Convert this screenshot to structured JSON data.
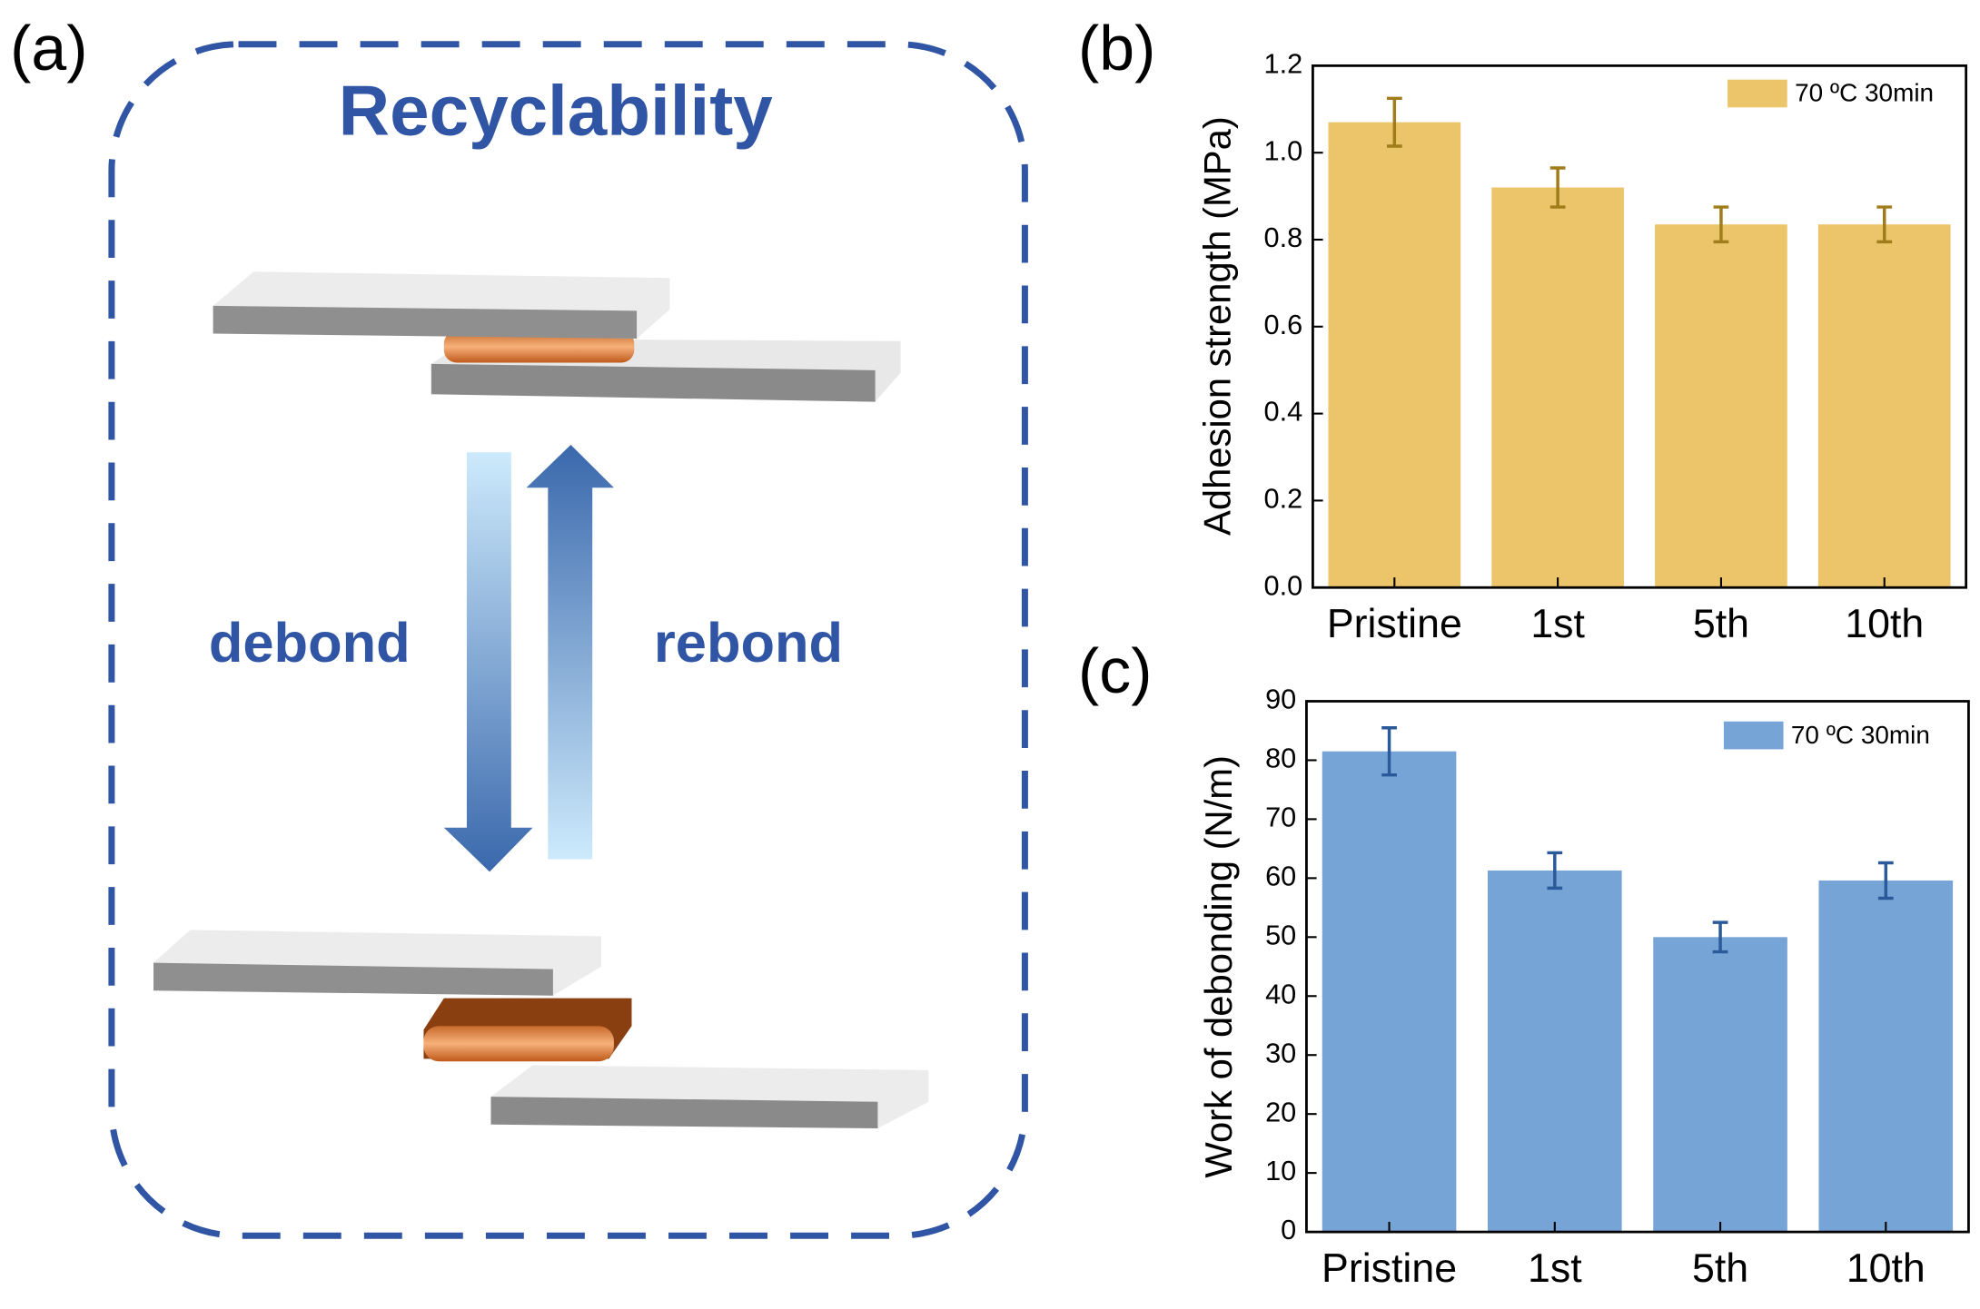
{
  "diagram": {
    "panel_label": "(a)",
    "title": "Recyclability",
    "left_label": "debond",
    "right_label": "rebond"
  },
  "chart_data": [
    {
      "type": "bar",
      "panel_label": "(b)",
      "y_label": "Adhesion strength (MPa)",
      "categories": [
        "Pristine",
        "1st",
        "5th",
        "10th"
      ],
      "series": [
        {
          "name": "70 ºC 30min",
          "color": "#ecc56a",
          "error_color": "#a07d1a",
          "values": [
            1.07,
            0.92,
            0.835,
            0.835
          ],
          "errors": [
            0.055,
            0.045,
            0.04,
            0.04
          ]
        }
      ],
      "ylim": [
        0,
        1.2
      ],
      "yticks": [
        {
          "value": 0,
          "label": "0.0"
        },
        0.2,
        0.4,
        0.6,
        0.8,
        {
          "value": 1,
          "label": "1.0"
        },
        1.2
      ],
      "legend": "upper right",
      "grid": false
    },
    {
      "type": "bar",
      "panel_label": "(c)",
      "y_label": "Work of debonding (N/m)",
      "categories": [
        "Pristine",
        "1st",
        "5th",
        "10th"
      ],
      "series": [
        {
          "name": "70 ºC 30min",
          "color": "#76a4d6",
          "error_color": "#2a5a9a",
          "values": [
            81.5,
            61.3,
            50,
            59.6
          ],
          "errors": [
            4,
            3,
            2.5,
            3
          ]
        }
      ],
      "ylim": [
        0,
        90
      ],
      "yticks": [
        0,
        10,
        20,
        30,
        40,
        50,
        60,
        70,
        80,
        90
      ],
      "legend": "upper right",
      "grid": false
    }
  ]
}
